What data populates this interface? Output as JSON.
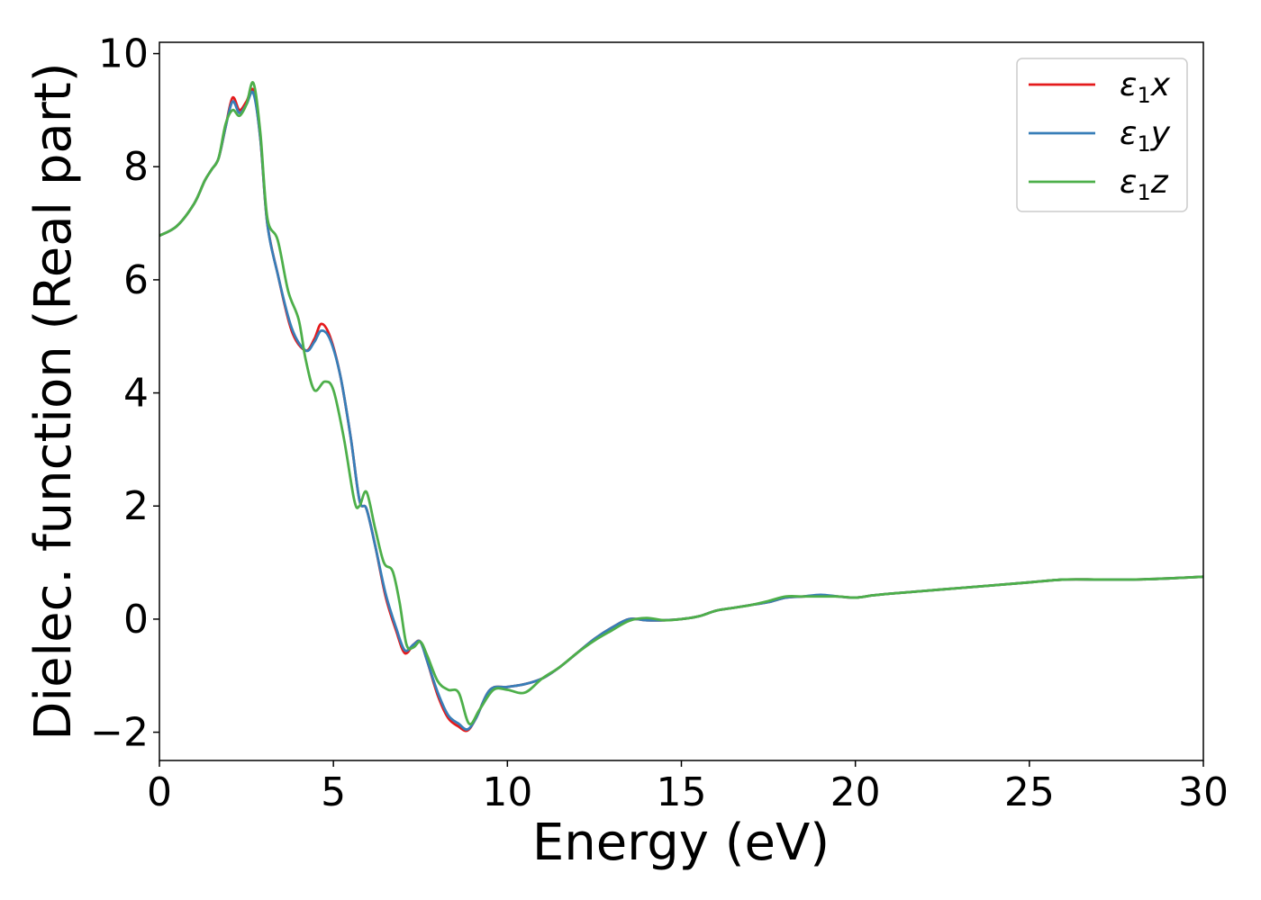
{
  "chart_data": {
    "type": "line",
    "xlabel": "Energy (eV)",
    "ylabel": "Dielec. function (Real part)",
    "xlim": [
      0,
      30
    ],
    "ylim": [
      -2.5,
      10.2
    ],
    "xticks": [
      0,
      5,
      10,
      15,
      20,
      25,
      30
    ],
    "yticks": [
      -2,
      0,
      2,
      4,
      6,
      8,
      10
    ],
    "xtick_labels": [
      "0",
      "5",
      "10",
      "15",
      "20",
      "25",
      "30"
    ],
    "ytick_labels": [
      "−2",
      "0",
      "2",
      "4",
      "6",
      "8",
      "10"
    ],
    "grid": false,
    "legend": "top-right",
    "series": [
      {
        "name": "ε1x",
        "label_main": "ε",
        "label_sub": "1",
        "label_tail": "x",
        "color": "#e41a1c",
        "x": [
          0,
          0.5,
          1.0,
          1.3,
          1.5,
          1.7,
          1.9,
          2.1,
          2.3,
          2.5,
          2.7,
          2.9,
          3.1,
          3.4,
          3.8,
          4.2,
          4.45,
          4.65,
          4.9,
          5.2,
          5.5,
          5.75,
          5.95,
          6.2,
          6.5,
          6.8,
          7.05,
          7.3,
          7.5,
          7.7,
          8.0,
          8.3,
          8.6,
          8.85,
          9.1,
          9.5,
          10.0,
          10.5,
          11.0,
          11.5,
          12.0,
          12.5,
          13.0,
          13.5,
          14.0,
          14.5,
          15.0,
          15.5,
          16.0,
          16.5,
          17.0,
          17.5,
          18.0,
          18.5,
          19.0,
          19.5,
          20.0,
          20.5,
          21.0,
          22.0,
          23.0,
          24.0,
          25.0,
          26.0,
          27.0,
          28.0,
          29.0,
          30.0
        ],
        "y": [
          6.78,
          6.95,
          7.35,
          7.75,
          7.95,
          8.15,
          8.7,
          9.22,
          9.0,
          9.15,
          9.35,
          8.5,
          7.0,
          6.1,
          5.1,
          4.75,
          4.95,
          5.22,
          5.0,
          4.3,
          3.2,
          2.1,
          1.95,
          1.3,
          0.4,
          -0.2,
          -0.6,
          -0.45,
          -0.4,
          -0.75,
          -1.35,
          -1.75,
          -1.9,
          -1.97,
          -1.75,
          -1.25,
          -1.2,
          -1.15,
          -1.05,
          -0.85,
          -0.6,
          -0.35,
          -0.15,
          0.0,
          -0.02,
          -0.02,
          0.0,
          0.05,
          0.15,
          0.2,
          0.25,
          0.3,
          0.38,
          0.4,
          0.42,
          0.4,
          0.38,
          0.42,
          0.45,
          0.5,
          0.55,
          0.6,
          0.65,
          0.7,
          0.7,
          0.7,
          0.72,
          0.75
        ]
      },
      {
        "name": "ε1y",
        "label_main": "ε",
        "label_sub": "1",
        "label_tail": "y",
        "color": "#377eb8",
        "x": [
          0,
          0.5,
          1.0,
          1.3,
          1.5,
          1.7,
          1.9,
          2.1,
          2.3,
          2.5,
          2.7,
          2.9,
          3.1,
          3.4,
          3.8,
          4.2,
          4.45,
          4.65,
          4.9,
          5.2,
          5.5,
          5.75,
          5.95,
          6.2,
          6.5,
          6.8,
          7.05,
          7.3,
          7.5,
          7.7,
          8.0,
          8.3,
          8.6,
          8.85,
          9.1,
          9.5,
          10.0,
          10.5,
          11.0,
          11.5,
          12.0,
          12.5,
          13.0,
          13.5,
          14.0,
          14.5,
          15.0,
          15.5,
          16.0,
          16.5,
          17.0,
          17.5,
          18.0,
          18.5,
          19.0,
          19.5,
          20.0,
          20.5,
          21.0,
          22.0,
          23.0,
          24.0,
          25.0,
          26.0,
          27.0,
          28.0,
          29.0,
          30.0
        ],
        "y": [
          6.78,
          6.95,
          7.35,
          7.75,
          7.95,
          8.15,
          8.7,
          9.15,
          8.95,
          9.1,
          9.3,
          8.5,
          7.0,
          6.1,
          5.15,
          4.75,
          4.9,
          5.1,
          4.95,
          4.3,
          3.2,
          2.1,
          1.95,
          1.3,
          0.45,
          -0.15,
          -0.55,
          -0.45,
          -0.4,
          -0.75,
          -1.3,
          -1.7,
          -1.85,
          -1.95,
          -1.75,
          -1.25,
          -1.2,
          -1.15,
          -1.05,
          -0.85,
          -0.6,
          -0.35,
          -0.15,
          0.0,
          -0.02,
          -0.02,
          0.0,
          0.05,
          0.15,
          0.2,
          0.25,
          0.3,
          0.38,
          0.4,
          0.43,
          0.4,
          0.38,
          0.42,
          0.45,
          0.5,
          0.55,
          0.6,
          0.65,
          0.7,
          0.7,
          0.7,
          0.72,
          0.75
        ]
      },
      {
        "name": "ε1z",
        "label_main": "ε",
        "label_sub": "1",
        "label_tail": "z",
        "color": "#4daf4a",
        "x": [
          0,
          0.5,
          1.0,
          1.3,
          1.5,
          1.7,
          1.9,
          2.1,
          2.3,
          2.5,
          2.7,
          2.9,
          3.1,
          3.4,
          3.7,
          4.0,
          4.2,
          4.45,
          4.75,
          5.0,
          5.3,
          5.6,
          5.75,
          5.95,
          6.2,
          6.45,
          6.7,
          6.9,
          7.1,
          7.3,
          7.5,
          7.7,
          8.0,
          8.3,
          8.6,
          8.9,
          9.2,
          9.6,
          10.0,
          10.5,
          11.0,
          11.5,
          12.0,
          12.5,
          13.0,
          13.5,
          14.0,
          14.5,
          15.0,
          15.5,
          16.0,
          16.5,
          17.0,
          17.5,
          18.0,
          18.5,
          19.0,
          19.5,
          20.0,
          20.5,
          21.0,
          22.0,
          23.0,
          24.0,
          25.0,
          26.0,
          27.0,
          28.0,
          29.0,
          30.0
        ],
        "y": [
          6.78,
          6.95,
          7.35,
          7.75,
          7.95,
          8.15,
          8.75,
          9.0,
          8.9,
          9.1,
          9.48,
          8.6,
          7.1,
          6.7,
          5.8,
          5.3,
          4.6,
          4.05,
          4.2,
          4.05,
          3.2,
          2.1,
          2.0,
          2.25,
          1.6,
          1.0,
          0.85,
          0.3,
          -0.45,
          -0.5,
          -0.4,
          -0.65,
          -1.1,
          -1.25,
          -1.3,
          -1.85,
          -1.6,
          -1.25,
          -1.25,
          -1.3,
          -1.05,
          -0.85,
          -0.6,
          -0.38,
          -0.2,
          -0.03,
          0.02,
          -0.02,
          0.0,
          0.05,
          0.15,
          0.2,
          0.25,
          0.32,
          0.4,
          0.4,
          0.4,
          0.4,
          0.38,
          0.42,
          0.45,
          0.5,
          0.55,
          0.6,
          0.65,
          0.7,
          0.7,
          0.7,
          0.72,
          0.75
        ]
      }
    ]
  }
}
